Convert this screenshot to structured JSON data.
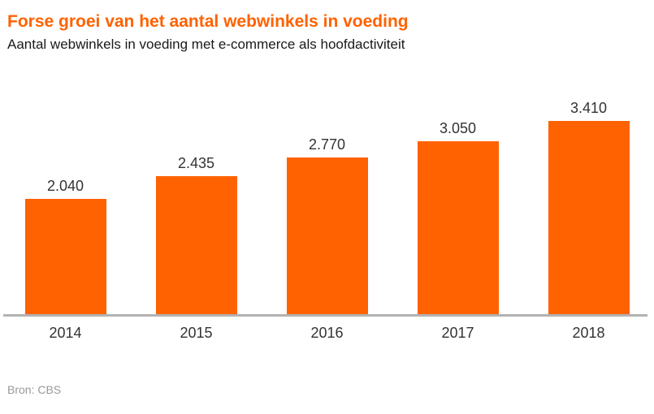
{
  "title": "Forse groei van het aantal webwinkels in voeding",
  "subtitle": "Aantal webwinkels in voeding met e-commerce als hoofdactiviteit",
  "source": "Bron: CBS",
  "colors": {
    "accent_orange": "#FF6200",
    "text_dark": "#333333",
    "axis_line": "#B2B2B2",
    "source_text": "#999999"
  },
  "chart_data": {
    "type": "bar",
    "title": "Forse groei van het aantal webwinkels in voeding",
    "subtitle": "Aantal webwinkels in voeding met e-commerce als hoofdactiviteit",
    "categories": [
      "2014",
      "2015",
      "2016",
      "2017",
      "2018"
    ],
    "values": [
      2040,
      2435,
      2770,
      3050,
      3410
    ],
    "value_labels": [
      "2.040",
      "2.435",
      "2.770",
      "3.050",
      "3.410"
    ],
    "xlabel": "",
    "ylabel": "",
    "ylim": [
      0,
      3500
    ],
    "grid": false,
    "legend": false,
    "bar_color": "#FF6200",
    "source": "Bron: CBS"
  }
}
